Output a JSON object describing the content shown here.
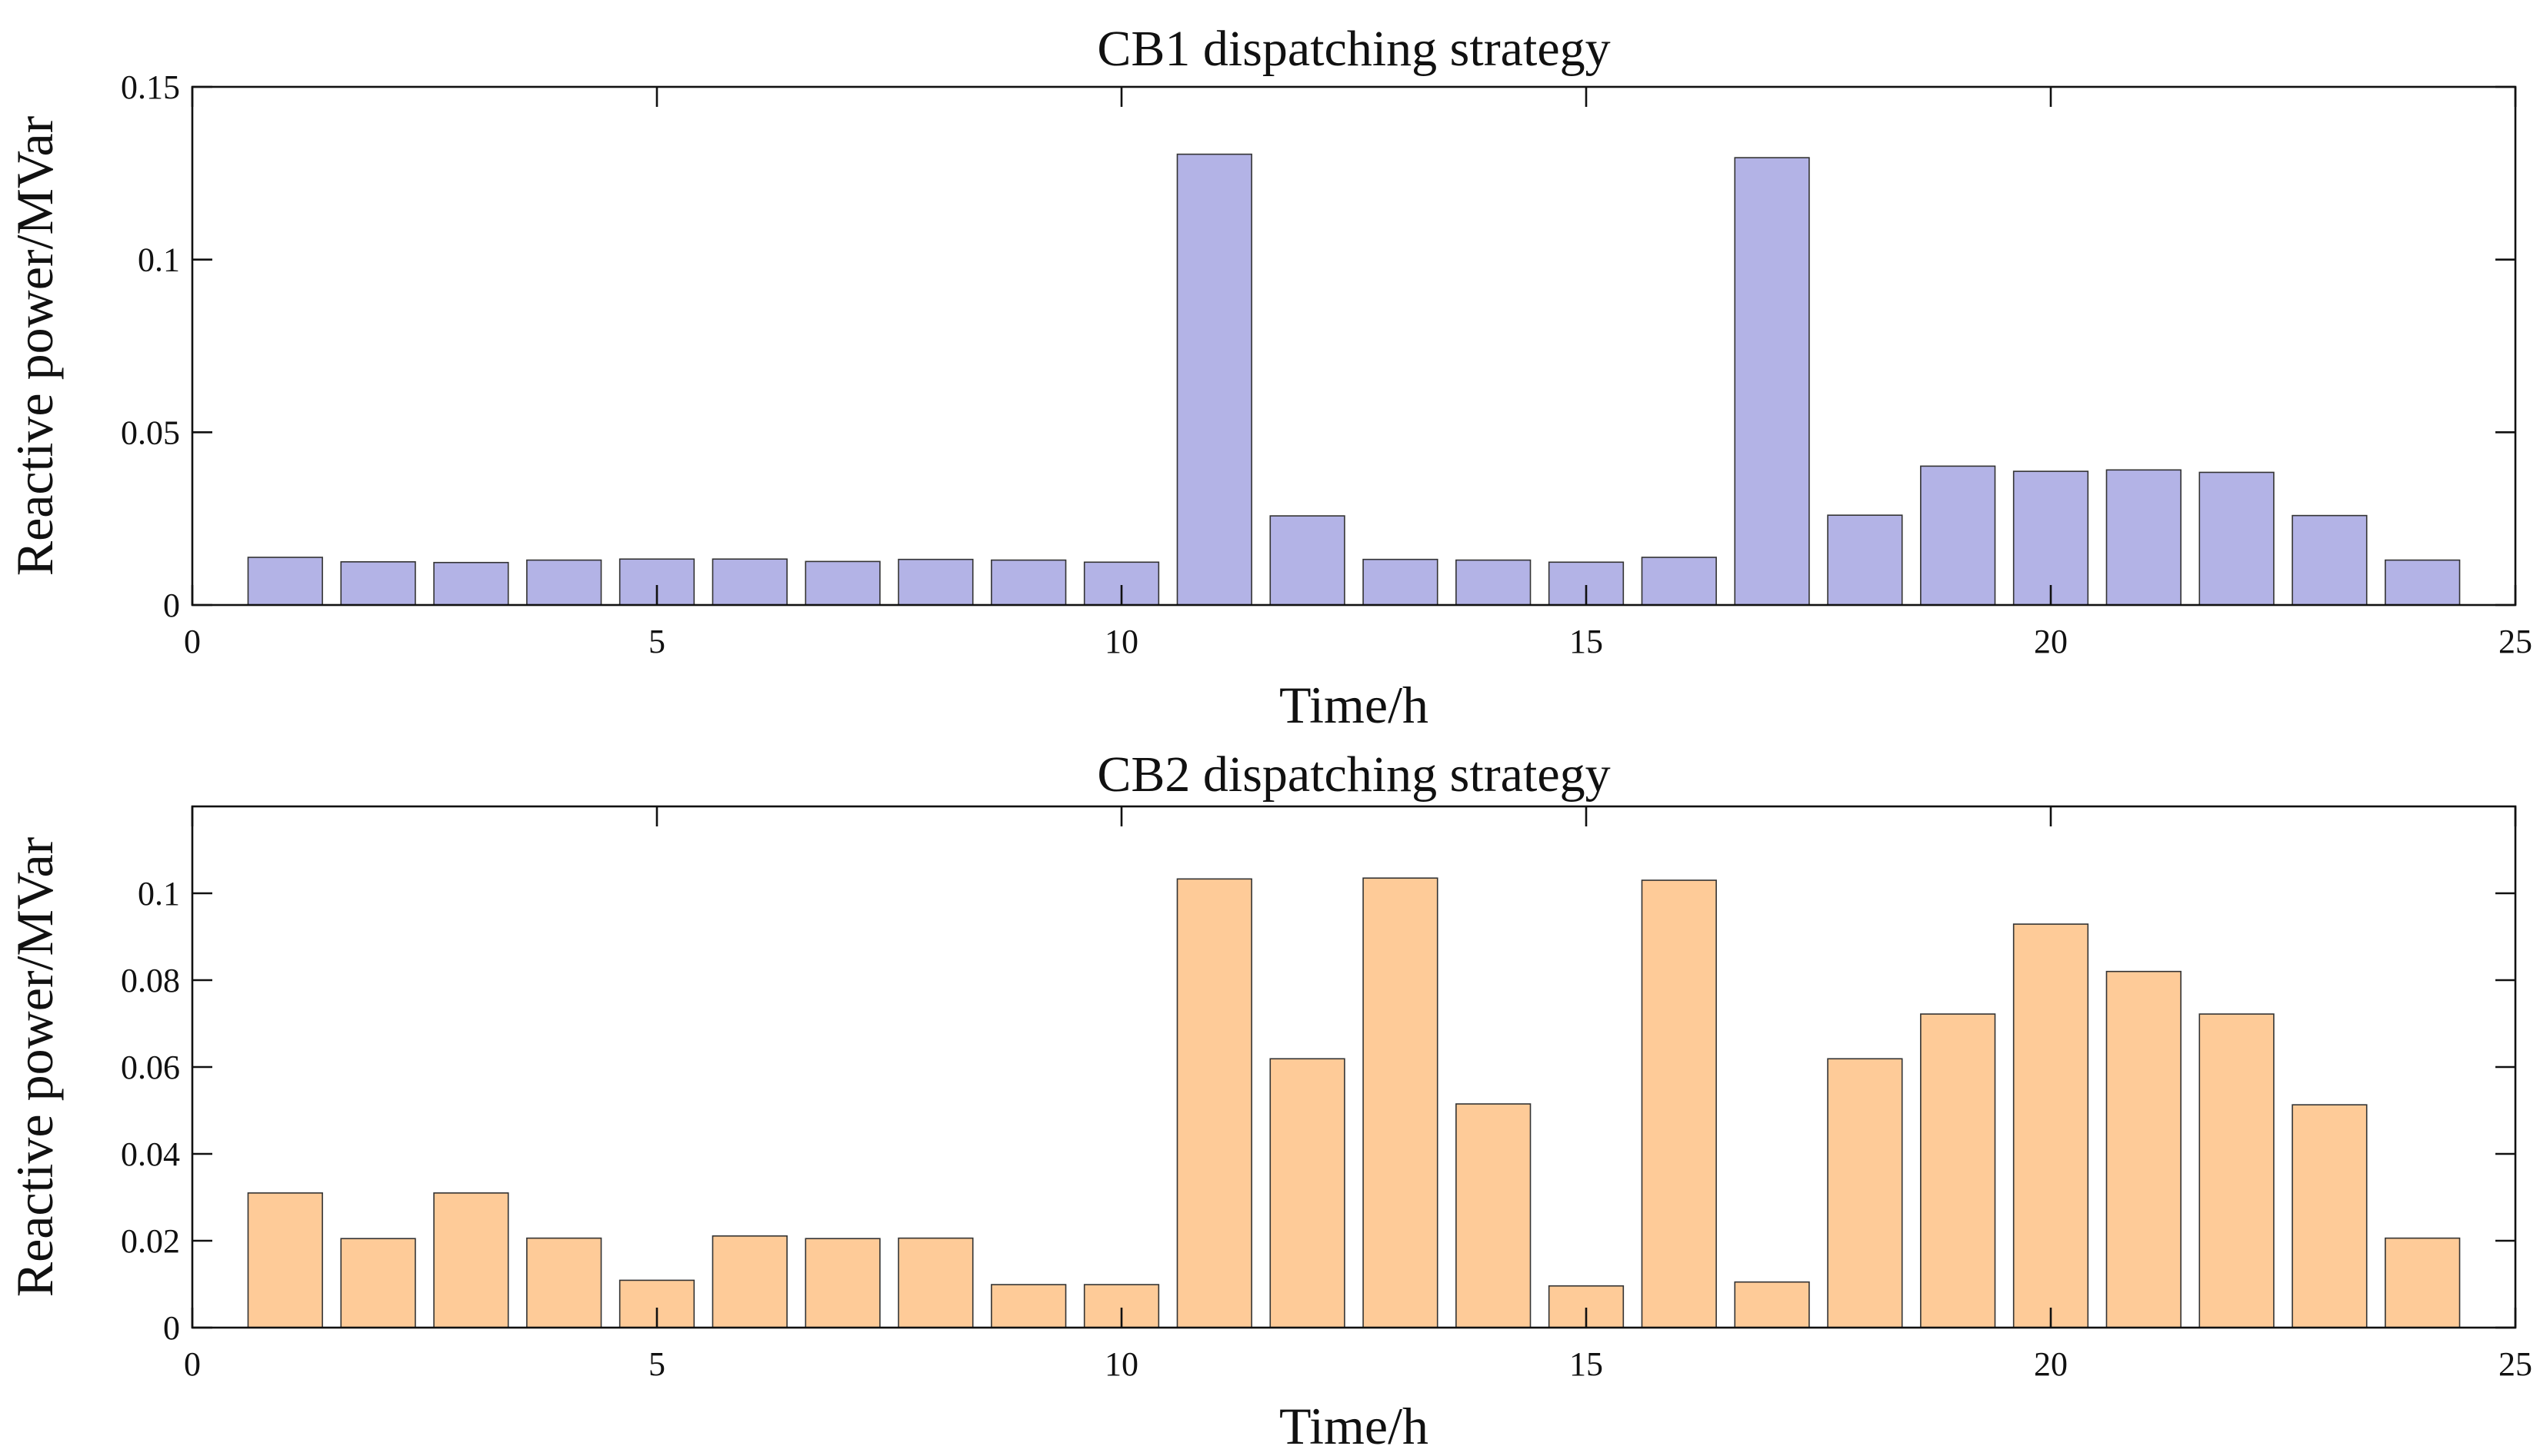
{
  "chart_data": [
    {
      "type": "bar",
      "title": "CB1 dispatching strategy",
      "xlabel": "Time/h",
      "ylabel": "Reactive power/MVar",
      "xlim": [
        0,
        25
      ],
      "ylim": [
        0,
        0.15
      ],
      "xticks": [
        0,
        5,
        10,
        15,
        20,
        25
      ],
      "xtick_labels": [
        "0",
        "5",
        "10",
        "15",
        "20",
        "25"
      ],
      "yticks": [
        0,
        0.05,
        0.1,
        0.15
      ],
      "ytick_labels": [
        "0",
        "0.05",
        "0.1",
        "0.15"
      ],
      "grid": false,
      "bar_color": "#b3b3e6",
      "x": [
        1,
        2,
        3,
        4,
        5,
        6,
        7,
        8,
        9,
        10,
        11,
        12,
        13,
        14,
        15,
        16,
        17,
        18,
        19,
        20,
        21,
        22,
        23,
        24
      ],
      "values": [
        0.0138,
        0.0125,
        0.0123,
        0.013,
        0.0133,
        0.0133,
        0.0126,
        0.0132,
        0.013,
        0.0124,
        0.1305,
        0.0258,
        0.0132,
        0.013,
        0.0124,
        0.0138,
        0.1295,
        0.026,
        0.0402,
        0.0387,
        0.0391,
        0.0384,
        0.0259,
        0.013
      ]
    },
    {
      "type": "bar",
      "title": "CB2 dispatching strategy",
      "xlabel": "Time/h",
      "ylabel": "Reactive power/MVar",
      "xlim": [
        0,
        25
      ],
      "ylim": [
        0,
        0.12
      ],
      "xticks": [
        0,
        5,
        10,
        15,
        20,
        25
      ],
      "xtick_labels": [
        "0",
        "5",
        "10",
        "15",
        "20",
        "25"
      ],
      "yticks": [
        0,
        0.02,
        0.04,
        0.06,
        0.08,
        0.1
      ],
      "ytick_labels": [
        "0",
        "0.02",
        "0.04",
        "0.06",
        "0.08",
        "0.1"
      ],
      "grid": false,
      "bar_color": "#fecb98",
      "x": [
        1,
        2,
        3,
        4,
        5,
        6,
        7,
        8,
        9,
        10,
        11,
        12,
        13,
        14,
        15,
        16,
        17,
        18,
        19,
        20,
        21,
        22,
        23,
        24
      ],
      "values": [
        0.031,
        0.0205,
        0.031,
        0.0206,
        0.0109,
        0.0211,
        0.0205,
        0.0206,
        0.0099,
        0.0099,
        0.1033,
        0.0619,
        0.1035,
        0.0515,
        0.0096,
        0.103,
        0.0105,
        0.0619,
        0.0722,
        0.0929,
        0.082,
        0.0722,
        0.0513,
        0.0206
      ]
    }
  ]
}
